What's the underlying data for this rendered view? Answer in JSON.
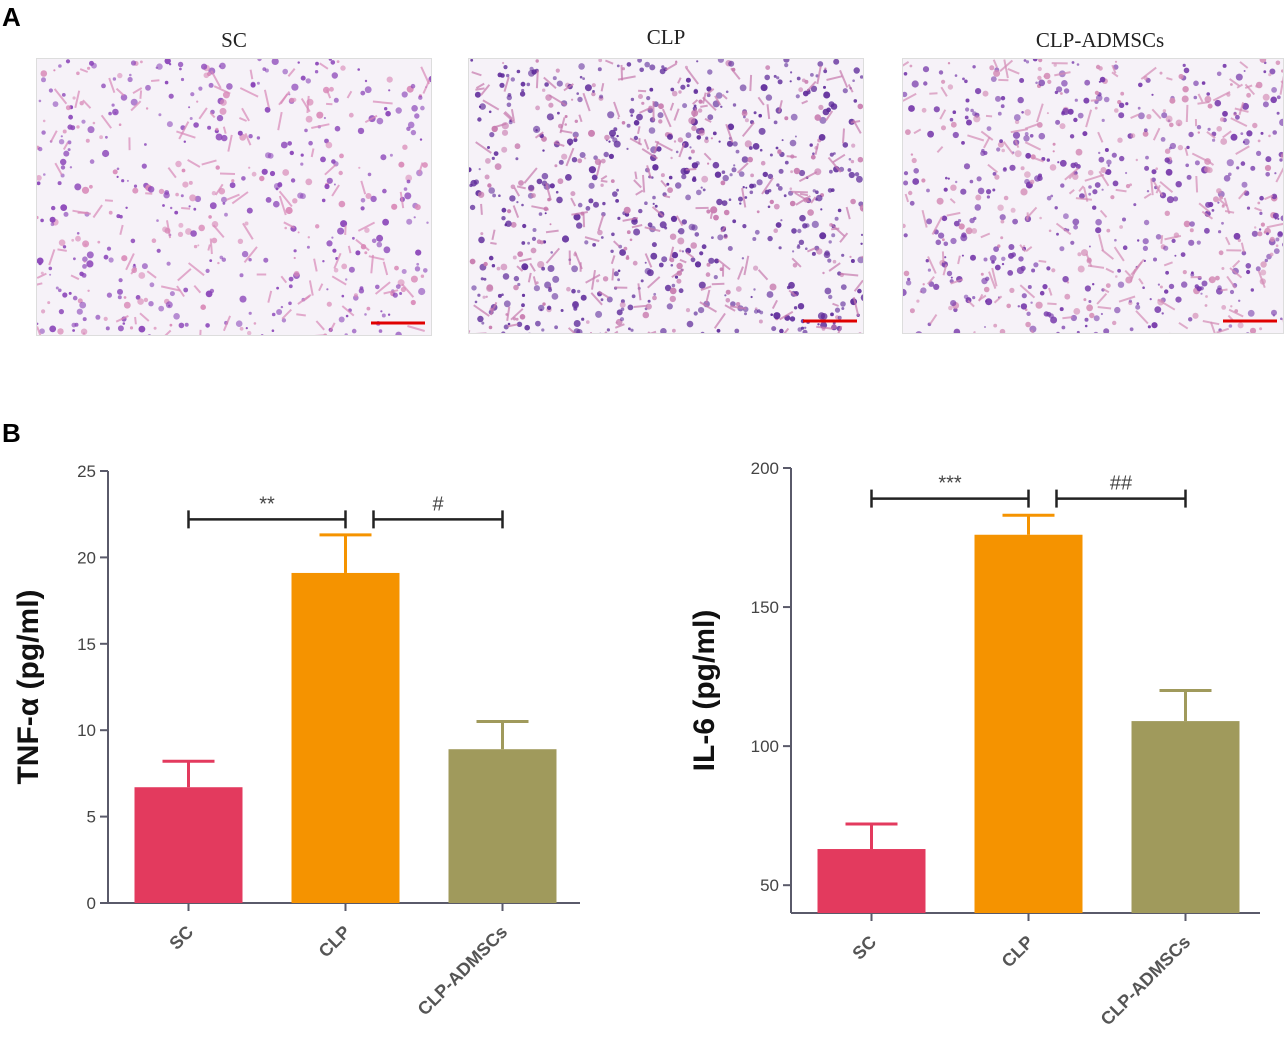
{
  "panels": {
    "a": {
      "label": "A"
    },
    "b": {
      "label": "B"
    }
  },
  "micrographs": [
    {
      "title": "SC",
      "density": 0.55,
      "tissue_color": "#8a44b8",
      "pink_color": "#d98ab8"
    },
    {
      "title": "CLP",
      "density": 0.85,
      "tissue_color": "#5e2a9a",
      "pink_color": "#c77aae"
    },
    {
      "title": "CLP-ADMSCs",
      "density": 0.7,
      "tissue_color": "#7638aa",
      "pink_color": "#d48cb6"
    }
  ],
  "scale_bar_color": "#e00000",
  "chart_data": [
    {
      "type": "bar",
      "categories": [
        "SC",
        "CLP",
        "CLP-ADMSCs"
      ],
      "values": [
        6.7,
        19.1,
        8.9
      ],
      "errors": [
        1.5,
        2.2,
        1.6
      ],
      "colors": [
        "#e33a5e",
        "#f59300",
        "#a09a5c"
      ],
      "ylabel": "TNF-α (pg/ml)",
      "ylim": [
        0,
        25
      ],
      "yticks": [
        0,
        5,
        10,
        15,
        20,
        25
      ],
      "significance": [
        {
          "from": 0,
          "to": 1,
          "label": "**",
          "y": 22.2
        },
        {
          "from": 1,
          "to": 2,
          "label": "#",
          "y": 22.2
        }
      ]
    },
    {
      "type": "bar",
      "categories": [
        "SC",
        "CLP",
        "CLP-ADMSCs"
      ],
      "values": [
        63,
        176,
        109
      ],
      "errors": [
        9,
        7,
        11
      ],
      "colors": [
        "#e33a5e",
        "#f59300",
        "#a09a5c"
      ],
      "ylabel": "IL-6 (pg/ml)",
      "ylim": [
        40,
        200
      ],
      "yticks": [
        50,
        100,
        150,
        200
      ],
      "significance": [
        {
          "from": 0,
          "to": 1,
          "label": "***",
          "y": 189
        },
        {
          "from": 1,
          "to": 2,
          "label": "##",
          "y": 189
        }
      ]
    }
  ]
}
